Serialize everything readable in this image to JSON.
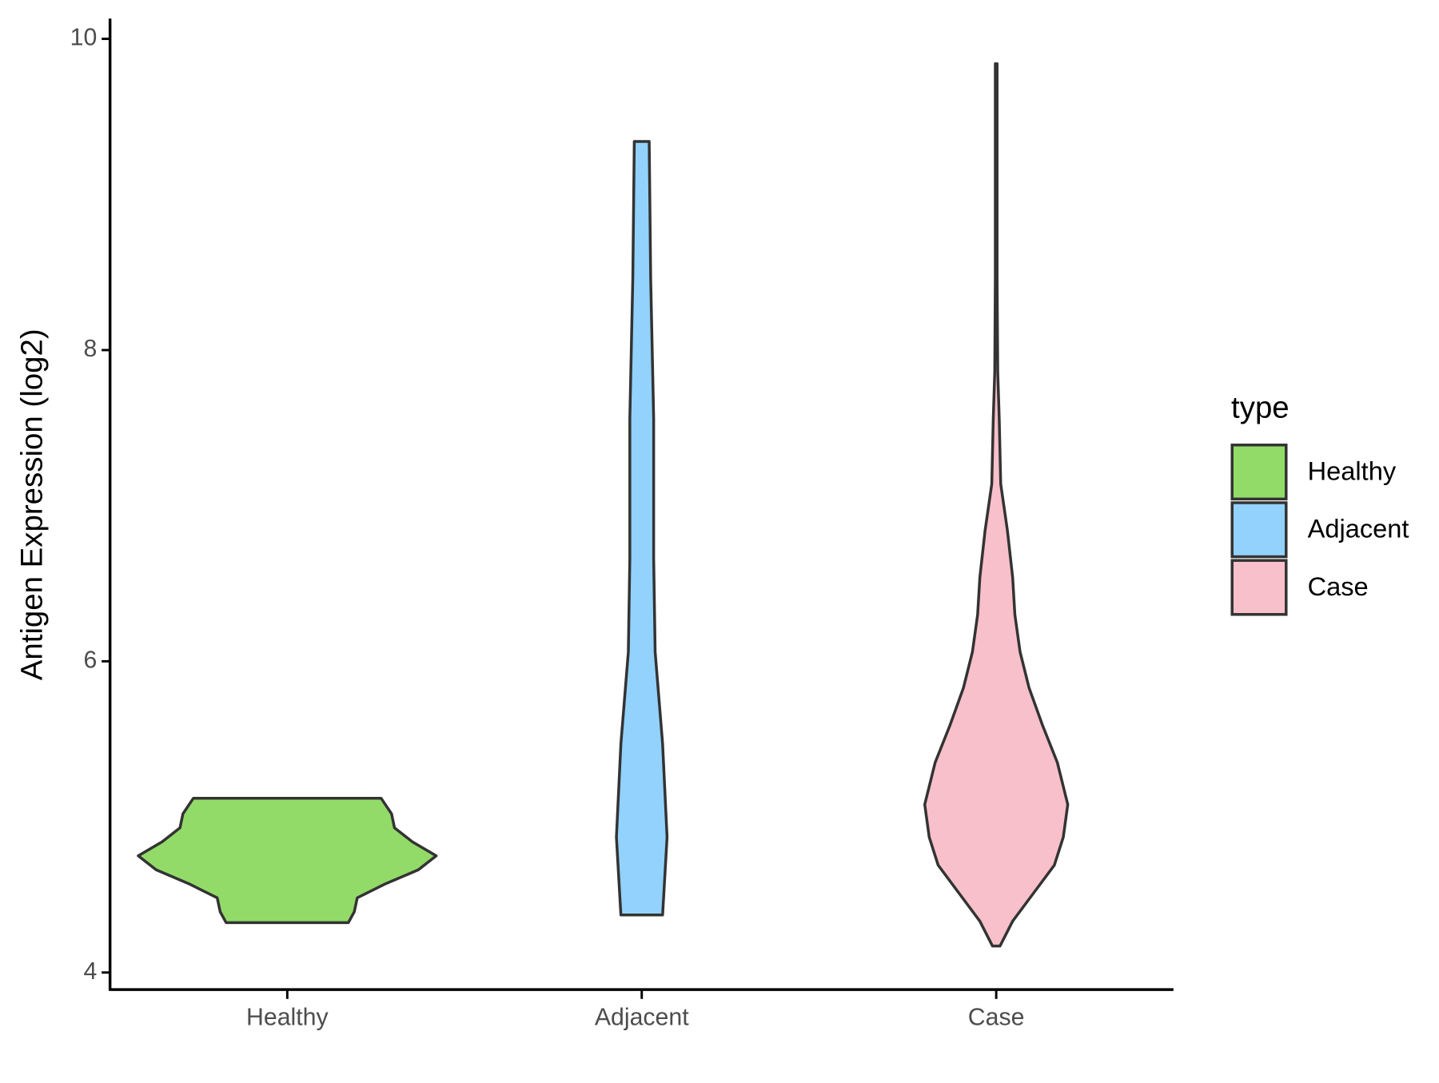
{
  "chart_data": {
    "type": "violin",
    "ylabel": "Antigen Expression (log2)",
    "categories": [
      "Healthy",
      "Adjacent",
      "Case"
    ],
    "series": [
      {
        "name": "Healthy",
        "color": "#93db69",
        "y": [
          4.32,
          4.39,
          4.48,
          4.57,
          4.66,
          4.75,
          4.84,
          4.93,
          5.02,
          5.12
        ],
        "density": [
          0.41,
          0.45,
          0.47,
          0.66,
          0.88,
          1.0,
          0.84,
          0.72,
          0.7,
          0.63
        ]
      },
      {
        "name": "Adjacent",
        "color": "#92d2fd",
        "y": [
          4.37,
          4.87,
          5.47,
          6.06,
          6.66,
          7.56,
          8.46,
          9.34
        ],
        "density": [
          0.14,
          0.17,
          0.14,
          0.09,
          0.08,
          0.08,
          0.06,
          0.05
        ]
      },
      {
        "name": "Case",
        "color": "#f8c0ca",
        "y": [
          4.17,
          4.33,
          4.51,
          4.69,
          4.87,
          5.08,
          5.35,
          5.59,
          5.83,
          6.06,
          6.3,
          6.54,
          6.84,
          7.14,
          7.56,
          7.86,
          8.46,
          9.84
        ],
        "density": [
          0.025,
          0.11,
          0.25,
          0.39,
          0.45,
          0.48,
          0.41,
          0.31,
          0.22,
          0.16,
          0.125,
          0.11,
          0.075,
          0.03,
          0.02,
          0.01,
          0.006,
          0.006
        ]
      }
    ],
    "ylim": [
      3.89,
      10.13
    ],
    "yticks": [
      4,
      6,
      8,
      10
    ],
    "legend_title": "type",
    "legend": "right",
    "grid": false
  }
}
